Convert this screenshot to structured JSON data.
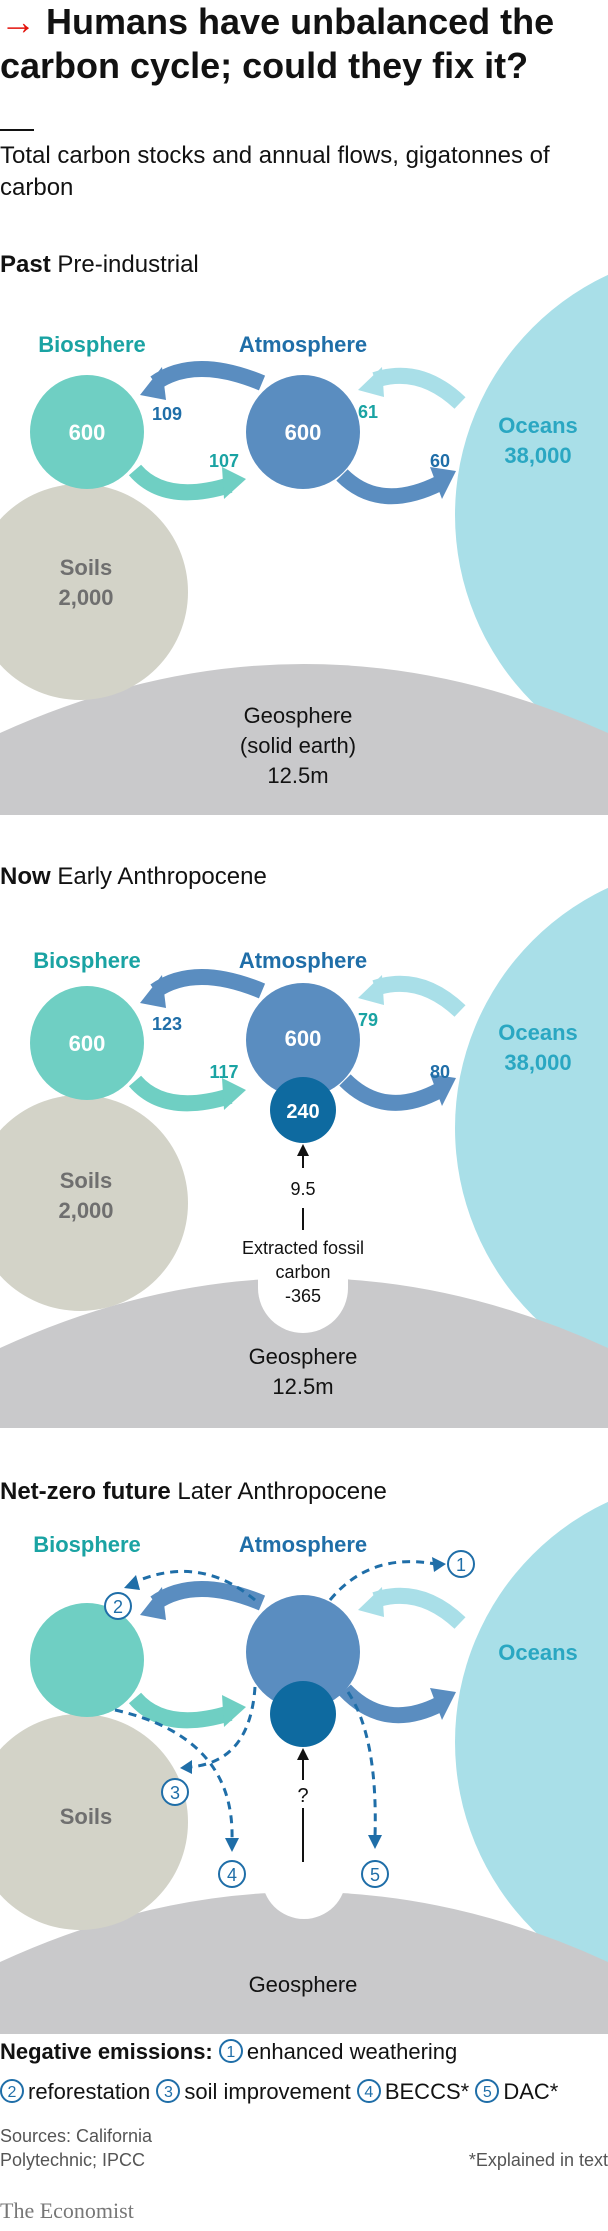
{
  "header": {
    "arrow": "→",
    "title": "Humans have unbalanced the carbon cycle; could they fix it?",
    "subtitle": "Total carbon stocks and annual flows, gigatonnes of carbon"
  },
  "colors": {
    "accent_red": "#e3120b",
    "biosphere": "#6fcfc3",
    "biosphere_label": "#1aa3a3",
    "atmosphere": "#5a8dc0",
    "atmosphere_label": "#1f6ea8",
    "fossil": "#0e6aa0",
    "oceans": "#a9dfe8",
    "oceans_label": "#2aa7c2",
    "soils": "#d3d3c8",
    "geosphere": "#c9c9cb",
    "dashed": "#1f6ea8"
  },
  "past": {
    "title_bold": "Past",
    "title_rest": "Pre-industrial",
    "biosphere_label": "Biosphere",
    "biosphere_value": "600",
    "atmosphere_label": "Atmosphere",
    "atmosphere_value": "600",
    "oceans_label": "Oceans",
    "oceans_value": "38,000",
    "soils_label": "Soils",
    "soils_value": "2,000",
    "geosphere_label": "Geosphere",
    "geosphere_sub": "(solid earth)",
    "geosphere_value": "12.5m",
    "flow_atm_to_bio": "109",
    "flow_bio_to_atm": "107",
    "flow_ocean_to_atm": "61",
    "flow_atm_to_ocean": "60"
  },
  "now": {
    "title_bold": "Now",
    "title_rest": "Early Anthropocene",
    "biosphere_label": "Biosphere",
    "biosphere_value": "600",
    "atmosphere_label": "Atmosphere",
    "atmosphere_value": "600",
    "fossil_in_atm_value": "240",
    "oceans_label": "Oceans",
    "oceans_value": "38,000",
    "soils_label": "Soils",
    "soils_value": "2,000",
    "geosphere_label": "Geosphere",
    "geosphere_value": "12.5m",
    "flow_atm_to_bio": "123",
    "flow_bio_to_atm": "117",
    "flow_ocean_to_atm": "79",
    "flow_atm_to_ocean": "80",
    "fossil_flow": "9.5",
    "extracted_line1": "Extracted fossil",
    "extracted_line2": "carbon",
    "extracted_value": "-365"
  },
  "future": {
    "title_bold": "Net-zero future",
    "title_rest": "Later Anthropocene",
    "biosphere_label": "Biosphere",
    "atmosphere_label": "Atmosphere",
    "oceans_label": "Oceans",
    "soils_label": "Soils",
    "geosphere_label": "Geosphere",
    "fossil_flow": "?",
    "markers": [
      "1",
      "2",
      "3",
      "4",
      "5"
    ]
  },
  "legend": {
    "title": "Negative emissions:",
    "items": [
      {
        "num": "1",
        "label": "enhanced weathering"
      },
      {
        "num": "2",
        "label": "reforestation"
      },
      {
        "num": "3",
        "label": "soil improvement"
      },
      {
        "num": "4",
        "label": "BECCS*"
      },
      {
        "num": "5",
        "label": "DAC*"
      }
    ]
  },
  "footer": {
    "sources": "Sources: California Polytechnic; IPCC",
    "footnote": "*Explained in text",
    "brand": "The Economist"
  }
}
